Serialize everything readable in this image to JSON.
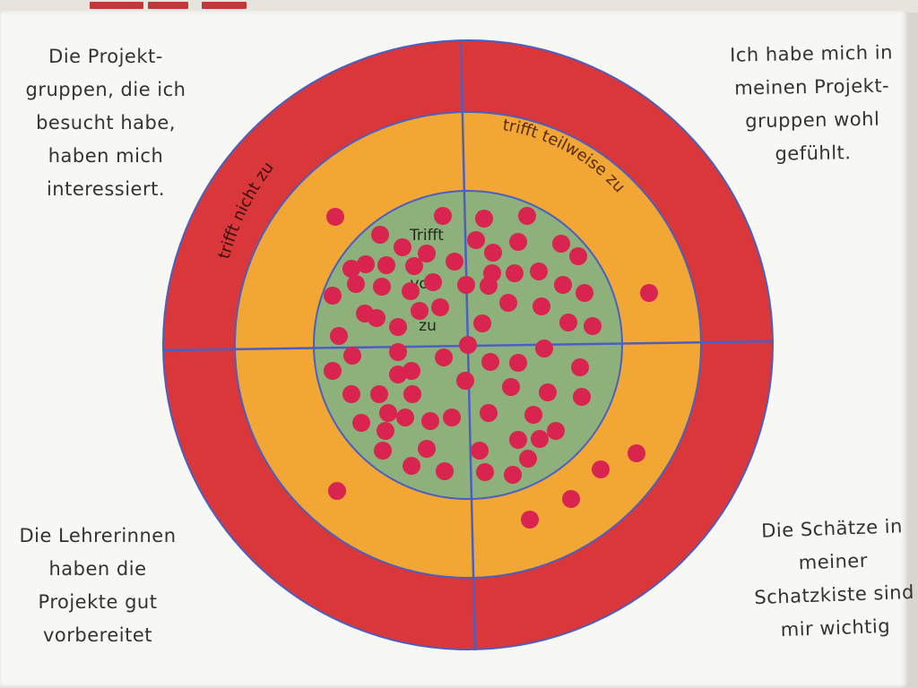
{
  "paper_texts": {
    "top_left": "Die Projekt-\ngruppen, die ich\nbesucht habe,\nhaben mich\ninteressiert.",
    "top_right": "Ich habe mich in\nmeinen Projekt-\ngruppen wohl\ngefühlt.",
    "bottom_left": "Die Lehrerinnen\nhaben die\nProjekte gut\nvorbereitet",
    "bottom_right": "Die Schätze in\nmeiner\nSchatzkiste sind\nmir wichtig"
  },
  "target_labels": {
    "outer_ring": "trifft nicht zu",
    "middle_ring": "trifft teilweise zu",
    "center_line1": "Trifft",
    "center_line2": "vo ll",
    "center_line3": "zu"
  },
  "colors": {
    "outer_ring": "#d9373a",
    "middle_ring": "#f2a734",
    "center": "#8eb07a",
    "divider_lines": "#4a5fc2",
    "dots": "#d8244f",
    "paper": "#f7f7f4"
  },
  "dot_counts": {
    "green_center": 89,
    "orange_ring": 7,
    "red_ring": 0
  }
}
